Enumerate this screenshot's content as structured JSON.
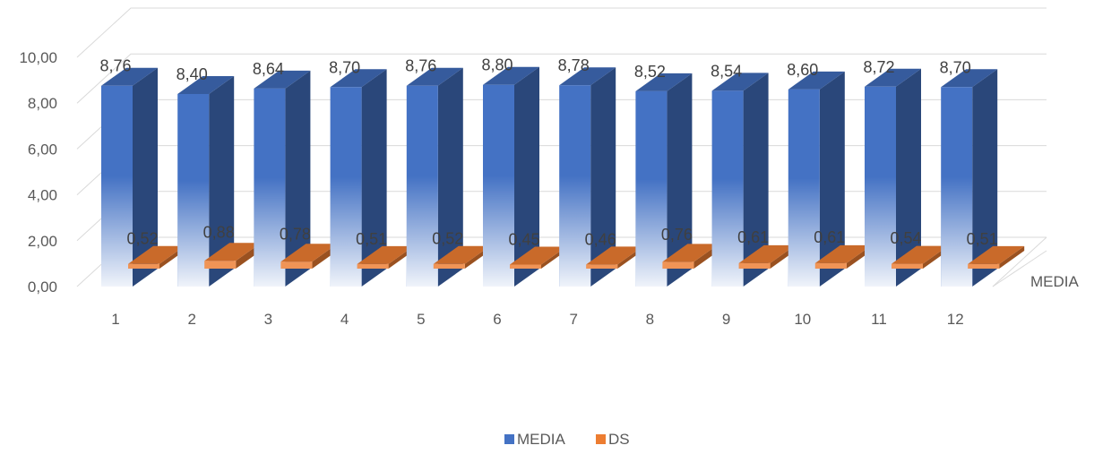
{
  "chart_data": {
    "type": "bar",
    "title": "",
    "categories": [
      "1",
      "2",
      "3",
      "4",
      "5",
      "6",
      "7",
      "8",
      "9",
      "10",
      "11",
      "12"
    ],
    "series": [
      {
        "name": "MEDIA",
        "color": "#4472C4",
        "values": [
          8.76,
          8.4,
          8.64,
          8.7,
          8.76,
          8.8,
          8.78,
          8.52,
          8.54,
          8.6,
          8.72,
          8.7
        ],
        "labels": [
          "8,76",
          "8,40",
          "8,64",
          "8,70",
          "8,76",
          "8,80",
          "8,78",
          "8,52",
          "8,54",
          "8,60",
          "8,72",
          "8,70"
        ]
      },
      {
        "name": "DS",
        "color": "#ED7D31",
        "values": [
          0.52,
          0.88,
          0.78,
          0.51,
          0.52,
          0.45,
          0.46,
          0.76,
          0.61,
          0.61,
          0.54,
          0.51
        ],
        "labels": [
          "0,52",
          "0,88",
          "0,78",
          "0,51",
          "0,52",
          "0,45",
          "0,46",
          "0,76",
          "0,61",
          "0,61",
          "0,54",
          "0,51"
        ]
      }
    ],
    "yticks": [
      "0,00",
      "2,00",
      "4,00",
      "6,00",
      "8,00",
      "10,00"
    ],
    "ylim": [
      0,
      10
    ],
    "depth_axis_label": "MEDIA",
    "grid": true,
    "legend": "bottom-center",
    "three_d": true
  }
}
